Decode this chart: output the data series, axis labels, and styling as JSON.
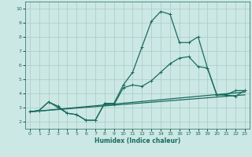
{
  "xlabel": "Humidex (Indice chaleur)",
  "ylabel": "",
  "xlim": [
    -0.5,
    23.5
  ],
  "ylim": [
    1.5,
    10.5
  ],
  "xticks": [
    0,
    1,
    2,
    3,
    4,
    5,
    6,
    7,
    8,
    9,
    10,
    11,
    12,
    13,
    14,
    15,
    16,
    17,
    18,
    19,
    20,
    21,
    22,
    23
  ],
  "yticks": [
    2,
    3,
    4,
    5,
    6,
    7,
    8,
    9,
    10
  ],
  "background_color": "#cce8e4",
  "grid_color": "#aececa",
  "line_color": "#1a6b5e",
  "line1_x": [
    0,
    1,
    2,
    3,
    4,
    5,
    6,
    7,
    8,
    9,
    10,
    11,
    12,
    13,
    14,
    15,
    16,
    17,
    18,
    19,
    20,
    21,
    22,
    23
  ],
  "line1_y": [
    2.7,
    2.8,
    3.4,
    3.1,
    2.6,
    2.5,
    2.1,
    2.1,
    3.3,
    3.3,
    4.6,
    5.5,
    7.3,
    9.1,
    9.8,
    9.6,
    7.6,
    7.6,
    8.0,
    5.8,
    3.9,
    3.9,
    4.2,
    4.2
  ],
  "line2_x": [
    0,
    1,
    2,
    3,
    4,
    5,
    6,
    7,
    8,
    9,
    10,
    11,
    12,
    13,
    14,
    15,
    16,
    17,
    18,
    19,
    20,
    21,
    22,
    23
  ],
  "line2_y": [
    2.7,
    2.8,
    3.4,
    3.0,
    2.6,
    2.5,
    2.1,
    2.1,
    3.3,
    3.2,
    4.4,
    4.6,
    4.5,
    4.9,
    5.5,
    6.1,
    6.5,
    6.6,
    5.9,
    5.8,
    3.9,
    3.9,
    3.8,
    4.2
  ],
  "line3_x": [
    0,
    23
  ],
  "line3_y": [
    2.7,
    4.1
  ],
  "line4_x": [
    0,
    23
  ],
  "line4_y": [
    2.7,
    3.9
  ]
}
